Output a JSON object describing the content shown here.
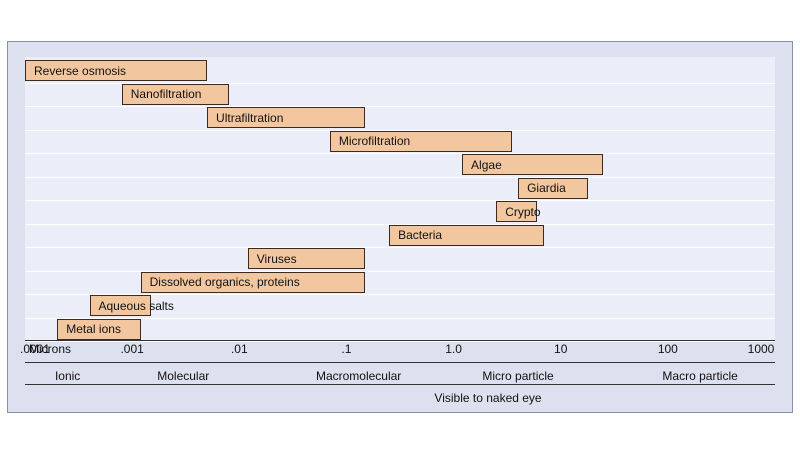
{
  "chart_data": {
    "type": "bar",
    "orientation": "horizontal",
    "x_scale": "log",
    "xlabel": "Microns",
    "xlim": [
      0.0001,
      1000
    ],
    "x_ticks": [
      {
        "value": 0.0001,
        "label": ".0001"
      },
      {
        "value": 0.001,
        "label": ".001"
      },
      {
        "value": 0.01,
        "label": ".01"
      },
      {
        "value": 0.1,
        "label": ".1"
      },
      {
        "value": 1,
        "label": "1.0"
      },
      {
        "value": 10,
        "label": "10"
      },
      {
        "value": 100,
        "label": "100"
      },
      {
        "value": 1000,
        "label": "1000"
      }
    ],
    "bars": [
      {
        "label": "Reverse osmosis",
        "start": 0.0001,
        "end": 0.005
      },
      {
        "label": "Nanofiltration",
        "start": 0.0008,
        "end": 0.008
      },
      {
        "label": "Ultrafiltration",
        "start": 0.005,
        "end": 0.15
      },
      {
        "label": "Microfiltration",
        "start": 0.07,
        "end": 3.5
      },
      {
        "label": "Algae",
        "start": 1.2,
        "end": 25
      },
      {
        "label": "Giardia",
        "start": 4,
        "end": 18
      },
      {
        "label": "Crypto",
        "start": 2.5,
        "end": 6
      },
      {
        "label": "Bacteria",
        "start": 0.25,
        "end": 7
      },
      {
        "label": "Viruses",
        "start": 0.012,
        "end": 0.15
      },
      {
        "label": "Dissolved organics, proteins",
        "start": 0.0012,
        "end": 0.15
      },
      {
        "label": "Aqueous salts",
        "start": 0.0004,
        "end": 0.0015
      },
      {
        "label": "Metal ions",
        "start": 0.0002,
        "end": 0.0012
      }
    ],
    "size_classes": [
      "Ionic",
      "Molecular",
      "Macromolecular",
      "Micro particle",
      "Macro particle"
    ],
    "visibility_note": "Visible to naked eye",
    "colors": {
      "bar_fill": "#f2c7a0",
      "bar_border": "#3a2a20",
      "plot_bg": "#ebedf8",
      "frame_bg": "#dde0ee"
    }
  }
}
